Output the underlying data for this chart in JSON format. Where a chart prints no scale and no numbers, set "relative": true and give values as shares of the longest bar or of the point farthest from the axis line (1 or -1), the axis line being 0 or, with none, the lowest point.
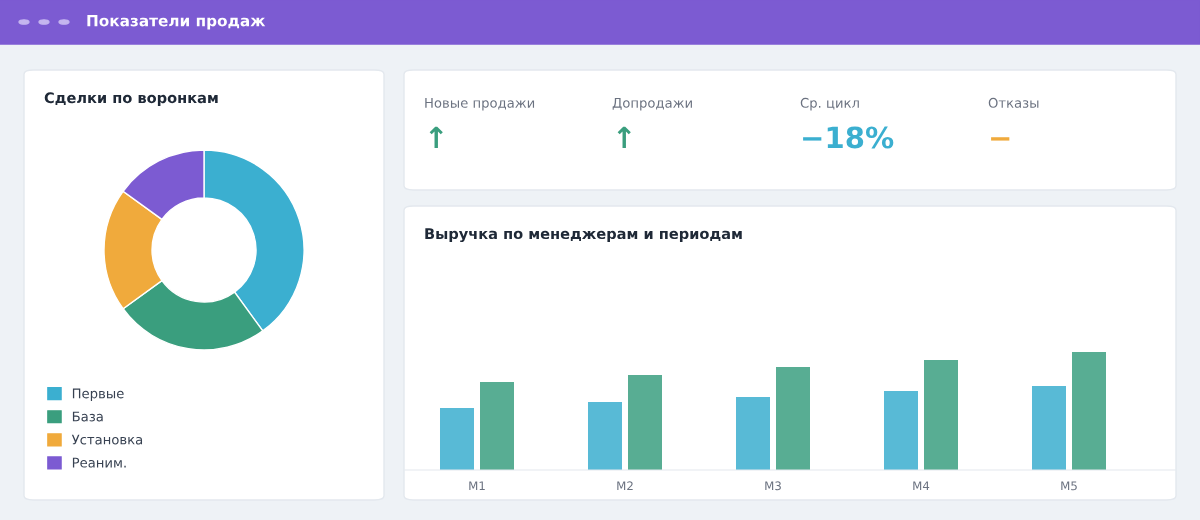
{
  "chart_data": [
    {
      "type": "donut",
      "title": "Сделки по воронкам",
      "categories": [
        "Первые",
        "База",
        "Установка",
        "Реаним."
      ],
      "values": [
        40,
        25,
        20,
        15
      ],
      "colors": [
        "#3bafd0",
        "#3a9e7e",
        "#f0aa3c",
        "#7c5bd2"
      ],
      "legend": "bottom left"
    },
    {
      "type": "other",
      "title": "Показатели продаж",
      "categories": [
        "Новые продажи",
        "Допродажи",
        "Ср. цикл",
        "Отказы"
      ],
      "value_labels": [
        "↑",
        "↑",
        "−18%",
        "−"
      ],
      "colors": [
        "#3a9e7e",
        "#3a9e7e",
        "#3bafd0",
        "#f0aa3c"
      ]
    },
    {
      "type": "bar",
      "title": "Выручка по менеджерам и периодам",
      "categories": [
        "M1",
        "M2",
        "M3",
        "M4",
        "M5"
      ],
      "relative": true,
      "series": [
        {
          "color": "#58bad6",
          "values": [
            0.525,
            0.576,
            0.619,
            0.669,
            0.712
          ]
        },
        {
          "color": "#58ad93",
          "values": [
            0.746,
            0.805,
            0.873,
            0.932,
            1.0
          ]
        }
      ]
    }
  ]
}
